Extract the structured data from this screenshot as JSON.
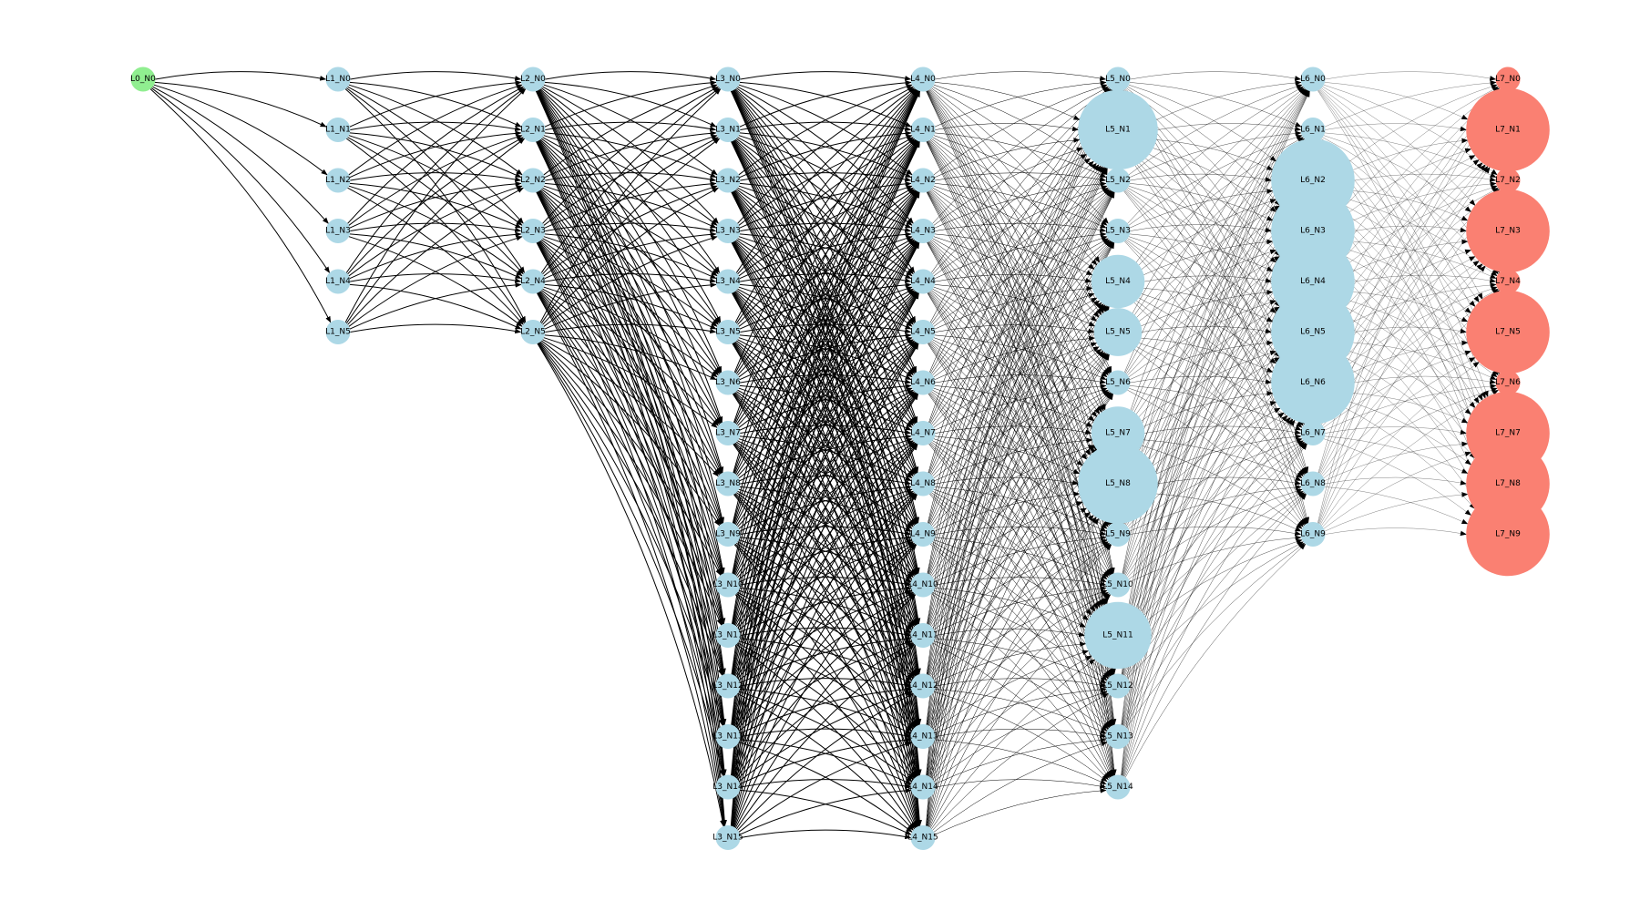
{
  "diagram": {
    "type": "layered-neural-network-graph",
    "colors": {
      "input_node": "#90ee90",
      "hidden_node": "#add8e6",
      "output_node": "#fa8072",
      "edge": "#000000",
      "background": "#ffffff"
    },
    "layers": [
      {
        "id": "L0",
        "role": "input",
        "nodes": [
          {
            "label": "L0_N0",
            "size": 1
          }
        ]
      },
      {
        "id": "L1",
        "role": "hidden",
        "nodes": [
          {
            "label": "L1_N0",
            "size": 1
          },
          {
            "label": "L1_N1",
            "size": 1
          },
          {
            "label": "L1_N2",
            "size": 1
          },
          {
            "label": "L1_N3",
            "size": 1
          },
          {
            "label": "L1_N4",
            "size": 1
          },
          {
            "label": "L1_N5",
            "size": 1
          }
        ]
      },
      {
        "id": "L2",
        "role": "hidden",
        "nodes": [
          {
            "label": "L2_N0",
            "size": 1
          },
          {
            "label": "L2_N1",
            "size": 1
          },
          {
            "label": "L2_N2",
            "size": 1
          },
          {
            "label": "L2_N3",
            "size": 1
          },
          {
            "label": "L2_N4",
            "size": 1
          },
          {
            "label": "L2_N5",
            "size": 1
          }
        ]
      },
      {
        "id": "L3",
        "role": "hidden",
        "nodes": [
          {
            "label": "L3_N0",
            "size": 1
          },
          {
            "label": "L3_N1",
            "size": 1
          },
          {
            "label": "L3_N2",
            "size": 1
          },
          {
            "label": "L3_N3",
            "size": 1
          },
          {
            "label": "L3_N4",
            "size": 1
          },
          {
            "label": "L3_N5",
            "size": 1
          },
          {
            "label": "L3_N6",
            "size": 1
          },
          {
            "label": "L3_N7",
            "size": 1
          },
          {
            "label": "L3_N8",
            "size": 1
          },
          {
            "label": "L3_N9",
            "size": 1
          },
          {
            "label": "L3_N10",
            "size": 1
          },
          {
            "label": "L3_N11",
            "size": 1
          },
          {
            "label": "L3_N12",
            "size": 1
          },
          {
            "label": "L3_N13",
            "size": 1
          },
          {
            "label": "L3_N14",
            "size": 1
          },
          {
            "label": "L3_N15",
            "size": 1
          }
        ]
      },
      {
        "id": "L4",
        "role": "hidden",
        "nodes": [
          {
            "label": "L4_N0",
            "size": 1
          },
          {
            "label": "L4_N1",
            "size": 1
          },
          {
            "label": "L4_N2",
            "size": 1
          },
          {
            "label": "L4_N3",
            "size": 1
          },
          {
            "label": "L4_N4",
            "size": 1
          },
          {
            "label": "L4_N5",
            "size": 1
          },
          {
            "label": "L4_N6",
            "size": 1
          },
          {
            "label": "L4_N7",
            "size": 1
          },
          {
            "label": "L4_N8",
            "size": 1
          },
          {
            "label": "L4_N9",
            "size": 1
          },
          {
            "label": "L4_N10",
            "size": 1
          },
          {
            "label": "L4_N11",
            "size": 1
          },
          {
            "label": "L4_N12",
            "size": 1
          },
          {
            "label": "L4_N13",
            "size": 1
          },
          {
            "label": "L4_N14",
            "size": 1
          },
          {
            "label": "L4_N15",
            "size": 1
          }
        ]
      },
      {
        "id": "L5",
        "role": "hidden",
        "nodes": [
          {
            "label": "L5_N0",
            "size": 1
          },
          {
            "label": "L5_N1",
            "size": 10.5
          },
          {
            "label": "L5_N2",
            "size": 1
          },
          {
            "label": "L5_N3",
            "size": 1
          },
          {
            "label": "L5_N4",
            "size": 4.7
          },
          {
            "label": "L5_N5",
            "size": 3.8
          },
          {
            "label": "L5_N6",
            "size": 1
          },
          {
            "label": "L5_N7",
            "size": 4.7
          },
          {
            "label": "L5_N8",
            "size": 10.5
          },
          {
            "label": "L5_N9",
            "size": 1
          },
          {
            "label": "L5_N10",
            "size": 1
          },
          {
            "label": "L5_N11",
            "size": 7.4
          },
          {
            "label": "L5_N12",
            "size": 1
          },
          {
            "label": "L5_N13",
            "size": 1
          },
          {
            "label": "L5_N14",
            "size": 1
          }
        ]
      },
      {
        "id": "L6",
        "role": "hidden",
        "nodes": [
          {
            "label": "L6_N0",
            "size": 1
          },
          {
            "label": "L6_N1",
            "size": 1
          },
          {
            "label": "L6_N2",
            "size": 11.5
          },
          {
            "label": "L6_N3",
            "size": 11.5
          },
          {
            "label": "L6_N4",
            "size": 11.5
          },
          {
            "label": "L6_N5",
            "size": 11.5
          },
          {
            "label": "L6_N6",
            "size": 11.5
          },
          {
            "label": "L6_N7",
            "size": 1
          },
          {
            "label": "L6_N8",
            "size": 1
          },
          {
            "label": "L6_N9",
            "size": 1
          }
        ]
      },
      {
        "id": "L7",
        "role": "output",
        "nodes": [
          {
            "label": "L7_N0",
            "size": 1
          },
          {
            "label": "L7_N1",
            "size": 11.5
          },
          {
            "label": "L7_N2",
            "size": 1
          },
          {
            "label": "L7_N3",
            "size": 11.5
          },
          {
            "label": "L7_N4",
            "size": 1
          },
          {
            "label": "L7_N5",
            "size": 11.5
          },
          {
            "label": "L7_N6",
            "size": 1
          },
          {
            "label": "L7_N7",
            "size": 11.5
          },
          {
            "label": "L7_N8",
            "size": 11.5
          },
          {
            "label": "L7_N9",
            "size": 11.5
          }
        ]
      }
    ],
    "connectivity": "fully-connected-between-adjacent-layers",
    "edge_weight_levels": [
      1,
      1,
      1,
      1,
      0.5,
      0.35,
      0.25
    ]
  }
}
